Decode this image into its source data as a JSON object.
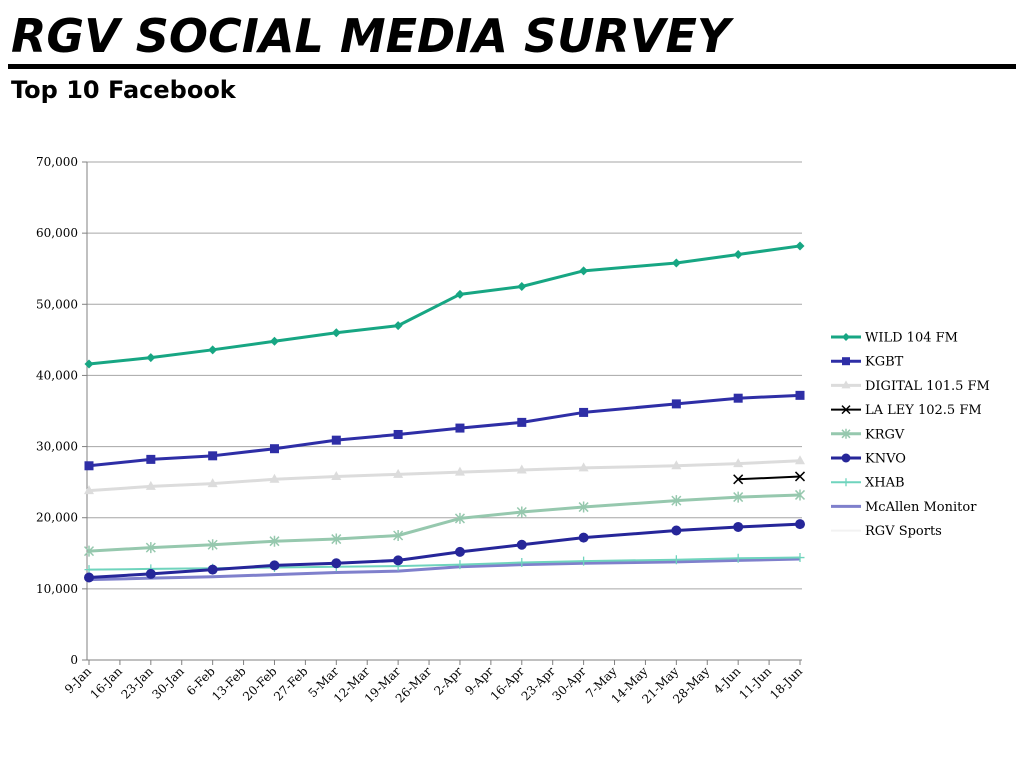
{
  "slide": {
    "title": "RGV SOCIAL MEDIA SURVEY",
    "subtitle": "Top 10 Facebook"
  },
  "chart_data": {
    "type": "line",
    "title": "",
    "xlabel": "",
    "ylabel": "",
    "ylim": [
      0,
      70000
    ],
    "y_ticks": [
      0,
      10000,
      20000,
      30000,
      40000,
      50000,
      60000,
      70000
    ],
    "y_tick_labels": [
      "0",
      "10,000",
      "20,000",
      "30,000",
      "40,000",
      "50,000",
      "60,000",
      "70,000"
    ],
    "categories": [
      "9-Jan",
      "16-Jan",
      "23-Jan",
      "30-Jan",
      "6-Feb",
      "13-Feb",
      "20-Feb",
      "27-Feb",
      "5-Mar",
      "12-Mar",
      "19-Mar",
      "26-Mar",
      "2-Apr",
      "9-Apr",
      "16-Apr",
      "23-Apr",
      "30-Apr",
      "7-May",
      "14-May",
      "21-May",
      "28-May",
      "4-Jun",
      "11-Jun",
      "18-Jun"
    ],
    "grid": "horizontal",
    "legend_position": "right",
    "series": [
      {
        "name": "WILD 104 FM",
        "color": "#17a683",
        "marker": "diamond",
        "width": 3,
        "values": [
          41600,
          null,
          42500,
          null,
          43600,
          null,
          44800,
          null,
          46000,
          null,
          47000,
          null,
          51400,
          null,
          52500,
          null,
          54700,
          null,
          null,
          55800,
          null,
          57000,
          null,
          58200
        ]
      },
      {
        "name": "KGBT",
        "color": "#2e2ea6",
        "marker": "square",
        "width": 3,
        "values": [
          27300,
          null,
          28200,
          null,
          28700,
          null,
          29700,
          null,
          30900,
          null,
          31700,
          null,
          32600,
          null,
          33400,
          null,
          34800,
          null,
          null,
          36000,
          null,
          36800,
          null,
          37200
        ]
      },
      {
        "name": "DIGITAL 101.5 FM",
        "color": "#dcdcdc",
        "marker": "triangle",
        "width": 3,
        "values": [
          23800,
          null,
          24400,
          null,
          24800,
          null,
          25400,
          null,
          25800,
          null,
          26100,
          null,
          26400,
          null,
          26700,
          null,
          27000,
          null,
          null,
          27300,
          null,
          27600,
          null,
          28000
        ]
      },
      {
        "name": "LA LEY 102.5 FM",
        "color": "#000000",
        "marker": "x",
        "width": 2,
        "values": [
          null,
          null,
          null,
          null,
          null,
          null,
          null,
          null,
          null,
          null,
          null,
          null,
          null,
          null,
          null,
          null,
          null,
          null,
          null,
          null,
          null,
          25400,
          null,
          25800
        ]
      },
      {
        "name": "KRGV",
        "color": "#96c8ae",
        "marker": "star",
        "width": 3,
        "values": [
          15300,
          null,
          15800,
          null,
          16200,
          null,
          16700,
          null,
          17000,
          null,
          17500,
          null,
          19900,
          null,
          20800,
          null,
          21500,
          null,
          null,
          22400,
          null,
          22900,
          null,
          23200
        ]
      },
      {
        "name": "KNVO",
        "color": "#262699",
        "marker": "circle",
        "width": 3,
        "values": [
          11600,
          null,
          12100,
          null,
          12700,
          null,
          13300,
          null,
          13600,
          null,
          14000,
          null,
          15200,
          null,
          16200,
          null,
          17200,
          null,
          null,
          18200,
          null,
          18700,
          null,
          19100
        ]
      },
      {
        "name": "XHAB",
        "color": "#6fd4bd",
        "marker": "plus",
        "width": 2,
        "values": [
          12700,
          null,
          12800,
          null,
          12900,
          null,
          13000,
          null,
          13100,
          null,
          13200,
          null,
          13400,
          null,
          13700,
          null,
          13900,
          null,
          null,
          14100,
          null,
          14300,
          null,
          14400
        ]
      },
      {
        "name": "McAllen Monitor",
        "color": "#7f80cc",
        "marker": "none",
        "width": 3,
        "values": [
          11300,
          null,
          11500,
          null,
          11700,
          null,
          12000,
          null,
          12300,
          null,
          12500,
          null,
          13100,
          null,
          13400,
          null,
          13600,
          null,
          null,
          13800,
          null,
          14000,
          null,
          14200
        ]
      },
      {
        "name": "RGV Sports",
        "color": "#f2f2f2",
        "marker": "none",
        "width": 2,
        "values": [
          null,
          null,
          null,
          null,
          null,
          null,
          null,
          null,
          null,
          null,
          null,
          null,
          null,
          null,
          null,
          null,
          null,
          null,
          null,
          null,
          null,
          null,
          null,
          null
        ]
      }
    ]
  }
}
